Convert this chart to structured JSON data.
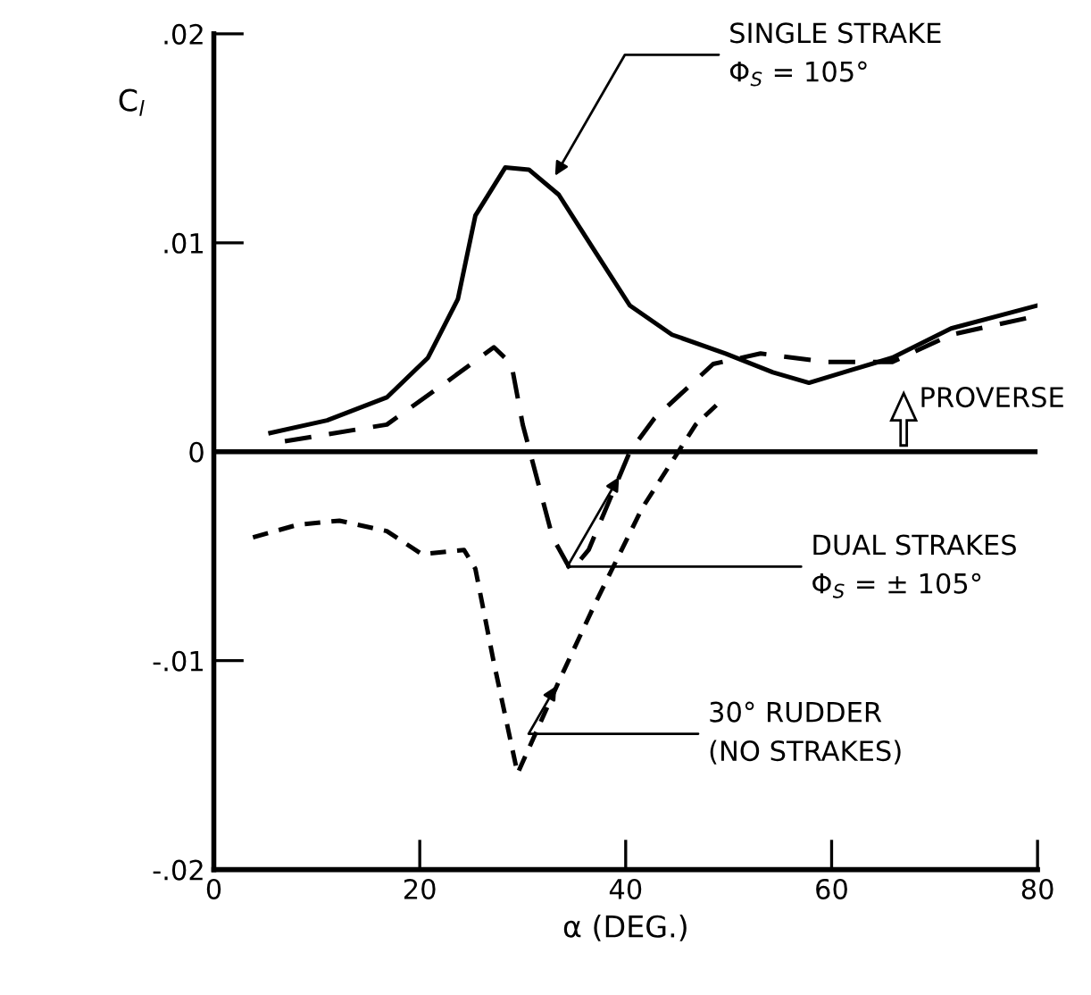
{
  "chart_data": {
    "type": "line",
    "xlabel": "α (DEG.)",
    "ylabel": "C$_{l}$",
    "xlim": [
      0,
      80
    ],
    "ylim": [
      -0.02,
      0.02
    ],
    "xticks": [
      0,
      20,
      40,
      60,
      80
    ],
    "yticks": [
      {
        "value": -0.02,
        "label": "-.02"
      },
      {
        "value": -0.01,
        "label": "-.01"
      },
      0,
      {
        "value": 0.01,
        "label": ".01"
      },
      {
        "value": 0.02,
        "label": ".02"
      }
    ],
    "grid": false,
    "legend": false,
    "marker": "none",
    "series": [
      {
        "color": "#000000",
        "line_style": "solid",
        "x": [
          5.5,
          11,
          16.8,
          20.8,
          23.7,
          25.4,
          28.3,
          30.6,
          33.5,
          37,
          40.4,
          44.5,
          49.7,
          54.3,
          57.8,
          61.8,
          65.9,
          71.6,
          80
        ],
        "values": [
          0.0009,
          0.0015,
          0.0026,
          0.0045,
          0.0073,
          0.0113,
          0.0136,
          0.0135,
          0.0123,
          0.0096,
          0.007,
          0.0056,
          0.0047,
          0.0038,
          0.0033,
          0.0039,
          0.0045,
          0.0059,
          0.007
        ]
      },
      {
        "color": "#000000",
        "line_style": "dashed",
        "x": [
          6.9,
          16.8,
          22.5,
          27.2,
          28.9,
          30,
          32.9,
          34.7,
          36.4,
          40.4,
          42.8,
          48.5,
          53.1,
          59.5,
          65.9,
          71.6,
          79
        ],
        "values": [
          0.0005,
          0.0013,
          0.0033,
          0.005,
          0.0042,
          0.0013,
          -0.0041,
          -0.0057,
          -0.0047,
          0.0,
          0.0016,
          0.0042,
          0.0047,
          0.0043,
          0.0043,
          0.0056,
          0.0064
        ]
      },
      {
        "color": "#000000",
        "line_style": "dotted",
        "x": [
          3.8,
          8.1,
          12.2,
          16.8,
          20.2,
          24.3,
          25.4,
          27.2,
          29.5,
          33.5,
          37,
          41.6,
          46.8,
          49.4
        ],
        "values": [
          -0.0041,
          -0.0035,
          -0.0033,
          -0.0038,
          -0.0049,
          -0.0047,
          -0.0056,
          -0.0101,
          -0.0154,
          -0.011,
          -0.0073,
          -0.0027,
          0.0013,
          0.0025
        ]
      }
    ],
    "ref_lines": [
      {
        "axis": "y",
        "value": 0,
        "color": "#000000",
        "line_style": "solid"
      }
    ],
    "annotations": [
      {
        "text": "SINGLE STRAKE\nΦ$_{S}$ = 105°",
        "x": 32.9,
        "y": 0.013
      },
      {
        "text": "DUAL STRAKES\nΦ$_{S}$ = ± 105°",
        "x": 39.6,
        "y": -0.001
      },
      {
        "text": "30° RUDDER\n(NO STRAKES)",
        "x": 33.5,
        "y": -0.011
      },
      "PROVERSE"
    ]
  }
}
